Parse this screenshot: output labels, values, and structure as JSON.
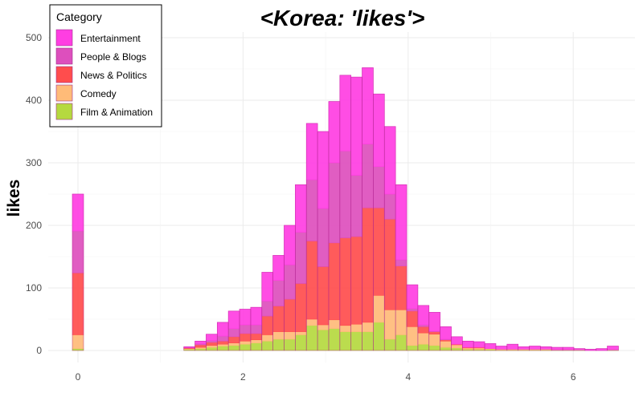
{
  "chart_data": {
    "type": "bar",
    "stacked": true,
    "title": "<Korea: 'likes'>",
    "xlabel": "",
    "ylabel": "likes",
    "xlim": [
      -0.25,
      6.6
    ],
    "ylim": [
      0,
      520
    ],
    "x_ticks": [
      0,
      2,
      4,
      6
    ],
    "y_ticks": [
      0,
      100,
      200,
      300,
      400,
      500
    ],
    "grid": true,
    "legend": {
      "title": "Category",
      "position": "top-left"
    },
    "bin_width": 0.135,
    "bin_starts": [
      -0.0675,
      0.0675,
      0.2025,
      0.3375,
      0.4725,
      0.6075,
      0.7425,
      0.8775,
      1.0125,
      1.1475,
      1.2825,
      1.4175,
      1.5525,
      1.6875,
      1.8225,
      1.9575,
      2.0925,
      2.2275,
      2.3625,
      2.4975,
      2.6325,
      2.7675,
      2.9025,
      3.0375,
      3.1725,
      3.3075,
      3.4425,
      3.5775,
      3.7125,
      3.8475,
      3.9825,
      4.1175,
      4.2525,
      4.3875,
      4.5225,
      4.6575,
      4.7925,
      4.9275,
      5.0625,
      5.1975,
      5.3325,
      5.4675,
      5.6025,
      5.7375,
      5.8725,
      6.0075,
      6.1425,
      6.2775,
      6.4125
    ],
    "series": [
      {
        "name": "Film & Animation",
        "color": "#b5d93f",
        "values": [
          3,
          0,
          0,
          0,
          0,
          0,
          0,
          0,
          0,
          0,
          2,
          3,
          5,
          7,
          8,
          10,
          12,
          15,
          18,
          18,
          25,
          40,
          33,
          35,
          30,
          30,
          30,
          45,
          18,
          25,
          8,
          10,
          8,
          5,
          4,
          2,
          2,
          2,
          1,
          1,
          1,
          1,
          1,
          1,
          1,
          1,
          0,
          0,
          1
        ]
      },
      {
        "name": "Comedy",
        "color": "#ffbb78",
        "values": [
          22,
          0,
          0,
          0,
          0,
          0,
          0,
          0,
          0,
          0,
          1,
          2,
          3,
          3,
          4,
          5,
          5,
          10,
          12,
          12,
          5,
          10,
          8,
          14,
          10,
          12,
          15,
          43,
          47,
          40,
          30,
          18,
          18,
          10,
          5,
          2,
          2,
          1,
          1,
          1,
          1,
          1,
          1,
          0,
          0,
          0,
          0,
          0,
          0
        ]
      },
      {
        "name": "News & Politics",
        "color": "#ff4d4d",
        "values": [
          99,
          0,
          0,
          0,
          0,
          0,
          0,
          0,
          0,
          0,
          1,
          4,
          5,
          5,
          10,
          12,
          10,
          30,
          41,
          52,
          77,
          125,
          93,
          123,
          140,
          140,
          183,
          140,
          145,
          70,
          25,
          10,
          4,
          2,
          1,
          1,
          1,
          0,
          0,
          0,
          0,
          0,
          0,
          0,
          0,
          0,
          0,
          0,
          0
        ]
      },
      {
        "name": "People & Blogs",
        "color": "#dd4fbd",
        "values": [
          67,
          0,
          0,
          0,
          0,
          0,
          0,
          0,
          0,
          0,
          1,
          2,
          3,
          8,
          13,
          14,
          14,
          24,
          41,
          55,
          82,
          98,
          93,
          128,
          139,
          98,
          102,
          66,
          40,
          10,
          4,
          3,
          1,
          1,
          0,
          0,
          0,
          0,
          0,
          0,
          0,
          0,
          0,
          0,
          0,
          0,
          0,
          0,
          0
        ]
      },
      {
        "name": "Entertainment",
        "color": "#ff3ee2",
        "values": [
          59,
          0,
          0,
          0,
          0,
          0,
          0,
          0,
          0,
          0,
          1,
          4,
          10,
          22,
          28,
          25,
          28,
          46,
          40,
          63,
          76,
          90,
          123,
          98,
          121,
          157,
          122,
          116,
          108,
          120,
          38,
          31,
          30,
          20,
          12,
          10,
          9,
          8,
          5,
          8,
          4,
          5,
          4,
          4,
          4,
          2,
          2,
          3,
          6
        ]
      }
    ]
  }
}
